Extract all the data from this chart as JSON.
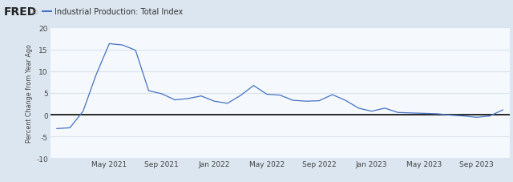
{
  "legend_label": "Industrial Production: Total Index",
  "ylabel": "Percent Change from Year Ago",
  "line_color": "#4472c4",
  "zero_line_color": "#1a1a1a",
  "header_bg": "#dce6f0",
  "plot_bg": "#f5f8fc",
  "fig_bg": "#dce6f0",
  "grid_color": "#d8e4f0",
  "ylim": [
    -10,
    20
  ],
  "yticks": [
    -10,
    -5,
    0,
    5,
    10,
    15,
    20
  ],
  "xtick_labels": [
    "May 2021",
    "Sep 2021",
    "Jan 2022",
    "May 2022",
    "Sep 2022",
    "Jan 2023",
    "May 2023",
    "Sep 2023"
  ],
  "xtick_positions": [
    4,
    8,
    12,
    16,
    20,
    24,
    28,
    32
  ],
  "values": [
    -3.2,
    -3.0,
    0.8,
    9.2,
    16.3,
    16.0,
    14.8,
    5.5,
    4.8,
    3.4,
    3.7,
    4.3,
    3.1,
    2.6,
    4.4,
    6.7,
    4.7,
    4.5,
    3.3,
    3.1,
    3.2,
    4.6,
    3.3,
    1.5,
    0.8,
    1.5,
    0.5,
    0.4,
    0.3,
    0.2,
    -0.1,
    -0.3,
    -0.6,
    -0.3,
    1.1
  ],
  "xlim": [
    -0.5,
    34.5
  ]
}
